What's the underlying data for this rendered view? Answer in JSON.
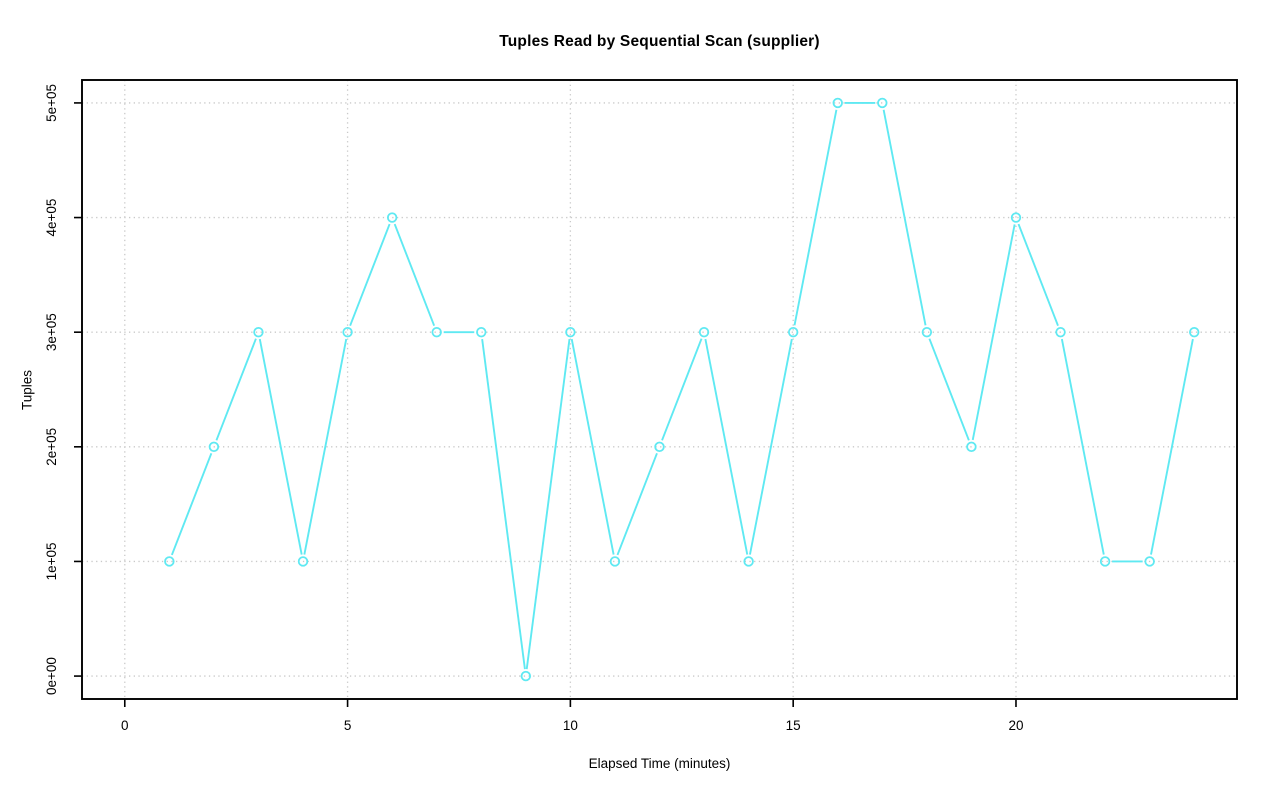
{
  "page": {
    "background": "#ffffff"
  },
  "chart_data": {
    "type": "line",
    "title": "Tuples Read by Sequential Scan (supplier)",
    "xlabel": "Elapsed Time (minutes)",
    "ylabel": "Tuples",
    "x": [
      1,
      2,
      3,
      4,
      5,
      6,
      7,
      8,
      9,
      10,
      11,
      12,
      13,
      14,
      15,
      16,
      17,
      18,
      19,
      20,
      21,
      22,
      23,
      24
    ],
    "y": [
      100000,
      200000,
      300000,
      100000,
      300000,
      400000,
      300000,
      300000,
      0,
      300000,
      100000,
      200000,
      300000,
      100000,
      300000,
      500000,
      500000,
      300000,
      200000,
      400000,
      300000,
      100000,
      100000,
      300000
    ],
    "xlim": [
      -0.96,
      24.96
    ],
    "ylim": [
      -20000,
      520000
    ],
    "x_ticks": [
      {
        "value": 0,
        "label": "0"
      },
      {
        "value": 5,
        "label": "5"
      },
      {
        "value": 10,
        "label": "10"
      },
      {
        "value": 15,
        "label": "15"
      },
      {
        "value": 20,
        "label": "20"
      }
    ],
    "y_ticks": [
      {
        "value": 0,
        "label": "0e+00"
      },
      {
        "value": 100000,
        "label": "1e+05"
      },
      {
        "value": 200000,
        "label": "2e+05"
      },
      {
        "value": 300000,
        "label": "3e+05"
      },
      {
        "value": 400000,
        "label": "4e+05"
      },
      {
        "value": 500000,
        "label": "5e+05"
      }
    ],
    "grid": true,
    "grid_style": "dotted",
    "legend_position": "none",
    "marker": "open-circle",
    "colors": {
      "line": "#5FE9F2",
      "grid": "#c9c9c9",
      "axis": "#000000",
      "text": "#000000",
      "background": "#ffffff"
    }
  }
}
